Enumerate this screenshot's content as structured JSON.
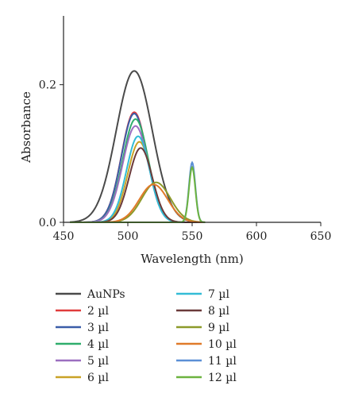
{
  "chart_data": {
    "type": "line",
    "xlabel": "Wavelength (nm)",
    "ylabel": "Absorbance",
    "xlim": [
      450,
      650
    ],
    "ylim": [
      0,
      0.3
    ],
    "x_ticks": [
      "450",
      "500",
      "550",
      "600",
      "650"
    ],
    "y_ticks": [
      "0.0",
      "0.2"
    ],
    "grid": false,
    "legend_position": "bottom",
    "series": [
      {
        "name": "AuNPs",
        "color": "#4a4a4a",
        "peaks": [
          {
            "center": 505,
            "height": 0.22,
            "sigma": 14
          }
        ]
      },
      {
        "name": "2 µl",
        "color": "#e03c3c",
        "peaks": [
          {
            "center": 505,
            "height": 0.16,
            "sigma": 10
          }
        ]
      },
      {
        "name": "3 µl",
        "color": "#3a5da8",
        "peaks": [
          {
            "center": 505,
            "height": 0.158,
            "sigma": 10
          }
        ]
      },
      {
        "name": "4 µl",
        "color": "#2fae6c",
        "peaks": [
          {
            "center": 506,
            "height": 0.15,
            "sigma": 10
          }
        ]
      },
      {
        "name": "5 µl",
        "color": "#9b6fc0",
        "peaks": [
          {
            "center": 506,
            "height": 0.14,
            "sigma": 10
          }
        ]
      },
      {
        "name": "6 µl",
        "color": "#c9a227",
        "peaks": [
          {
            "center": 509,
            "height": 0.117,
            "sigma": 9
          }
        ]
      },
      {
        "name": "7 µl",
        "color": "#33bcd6",
        "peaks": [
          {
            "center": 508,
            "height": 0.125,
            "sigma": 9
          }
        ]
      },
      {
        "name": "8 µl",
        "color": "#6b3a3a",
        "peaks": [
          {
            "center": 510,
            "height": 0.108,
            "sigma": 9
          }
        ]
      },
      {
        "name": "9 µl",
        "color": "#8c9a2a",
        "peaks": [
          {
            "center": 522,
            "height": 0.058,
            "sigma": 11
          }
        ]
      },
      {
        "name": "10 µl",
        "color": "#e07a2a",
        "peaks": [
          {
            "center": 520,
            "height": 0.055,
            "sigma": 11
          }
        ]
      },
      {
        "name": "11 µl",
        "color": "#5b8fd6",
        "peaks": [
          {
            "center": 550,
            "height": 0.087,
            "sigma": 2.5
          }
        ]
      },
      {
        "name": "12 µl",
        "color": "#6cb33f",
        "peaks": [
          {
            "center": 550,
            "height": 0.08,
            "sigma": 2.5
          }
        ]
      }
    ]
  }
}
